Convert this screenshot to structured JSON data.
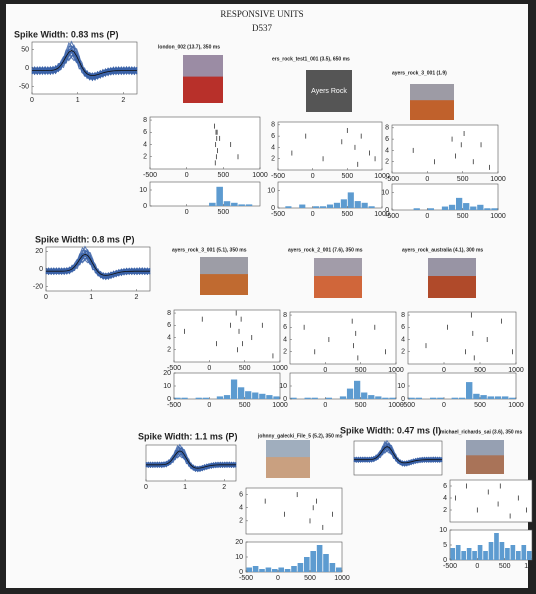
{
  "header": {
    "title": "RESPONSIVE UNITS",
    "subtitle": "D537"
  },
  "units": [
    {
      "spike_width": "Spike Width: 0.83 ms (P)",
      "waveform": {
        "xlim": [
          0,
          2.3
        ],
        "ylim": [
          -70,
          70
        ],
        "xticks": [
          0,
          1,
          2
        ],
        "yticks": [
          50,
          0,
          -50
        ]
      },
      "stimuli": [
        {
          "label": "london_002 (13.7), 350 ms",
          "raster": {
            "xlim": [
              -500,
              1000
            ],
            "ylim": [
              0,
              8.5
            ],
            "xticks": [
              -500,
              0,
              500,
              1000
            ],
            "yticks": [
              2,
              4,
              6,
              8
            ],
            "spike_times": [
              380,
              400,
              410,
              395,
              420,
              405,
              390,
              415,
              600,
              700,
              450
            ],
            "spike_trials": [
              7,
              6,
              5,
              4,
              3,
              2,
              1,
              6,
              4,
              2,
              5
            ]
          },
          "histogram": {
            "bins": [
              -500,
              -400,
              -300,
              -200,
              -100,
              0,
              100,
              200,
              300,
              400,
              500,
              600,
              700,
              800,
              900,
              1000
            ],
            "counts": [
              0,
              0,
              0,
              0,
              0,
              0,
              0,
              0,
              2,
              12,
              3,
              2,
              1,
              1,
              0
            ],
            "ylim": [
              0,
              15
            ],
            "yticks": [
              0,
              10
            ],
            "xticks": [
              0,
              500
            ]
          }
        },
        {
          "label": "ers_rock_test1_001 (3.5), 650 ms",
          "image_text": "Ayers Rock",
          "raster": {
            "xlim": [
              -500,
              1000
            ],
            "ylim": [
              0,
              8.5
            ],
            "xticks": [
              -500,
              0,
              500,
              1000
            ],
            "yticks": [
              2,
              4,
              6,
              8
            ],
            "spike_times": [
              -300,
              -100,
              150,
              420,
              500,
              610,
              650,
              700,
              820,
              900
            ],
            "spike_trials": [
              3,
              6,
              2,
              5,
              7,
              4,
              1,
              6,
              3,
              2
            ]
          },
          "histogram": {
            "bins": [
              -500,
              -400,
              -300,
              -200,
              -100,
              0,
              100,
              200,
              300,
              400,
              500,
              600,
              700,
              800,
              900,
              1000
            ],
            "counts": [
              0,
              1,
              0,
              2,
              0,
              1,
              1,
              2,
              3,
              5,
              9,
              4,
              3,
              1,
              0
            ],
            "ylim": [
              0,
              15
            ],
            "yticks": [
              0,
              10
            ],
            "xticks": [
              -500,
              0,
              500,
              1000
            ]
          }
        },
        {
          "label": "ayers_rock_3_001 (1.9)",
          "raster": {
            "xlim": [
              -500,
              1000
            ],
            "ylim": [
              0,
              8.5
            ],
            "xticks": [
              -500,
              0,
              500,
              1000
            ],
            "yticks": [
              2,
              4,
              6,
              8
            ],
            "spike_times": [
              -200,
              100,
              350,
              400,
              480,
              520,
              650,
              760,
              880
            ],
            "spike_trials": [
              4,
              2,
              6,
              3,
              5,
              7,
              2,
              5,
              1
            ]
          },
          "histogram": {
            "bins": [
              -500,
              -400,
              -300,
              -200,
              -100,
              0,
              100,
              200,
              300,
              400,
              500,
              600,
              700,
              800,
              900,
              1000
            ],
            "counts": [
              0,
              0,
              0,
              1,
              0,
              1,
              0,
              2,
              3,
              7,
              4,
              2,
              3,
              1,
              1
            ],
            "ylim": [
              0,
              15
            ],
            "yticks": [
              0,
              10
            ],
            "xticks": [
              -500,
              0,
              500,
              1000
            ]
          }
        }
      ]
    },
    {
      "spike_width": "Spike Width: 0.8 ms (P)",
      "waveform": {
        "xlim": [
          0,
          2.3
        ],
        "ylim": [
          -25,
          25
        ],
        "xticks": [
          0,
          1,
          2
        ],
        "yticks": [
          20,
          0,
          -20
        ]
      },
      "stimuli": [
        {
          "label": "ayers_rock_3_001 (5.1), 350 ms",
          "raster": {
            "xlim": [
              -500,
              1000
            ],
            "ylim": [
              0,
              8.5
            ],
            "xticks": [
              -500,
              0,
              500,
              1000
            ],
            "yticks": [
              2,
              4,
              6,
              8
            ],
            "spike_times": [
              -350,
              -100,
              100,
              300,
              380,
              400,
              420,
              450,
              470,
              600,
              750,
              900
            ],
            "spike_trials": [
              5,
              7,
              3,
              6,
              8,
              2,
              5,
              7,
              3,
              4,
              6,
              1
            ]
          },
          "histogram": {
            "bins": [
              -500,
              -400,
              -300,
              -200,
              -100,
              0,
              100,
              200,
              300,
              400,
              500,
              600,
              700,
              800,
              900,
              1000
            ],
            "counts": [
              1,
              1,
              0,
              1,
              1,
              0,
              2,
              3,
              15,
              9,
              6,
              5,
              4,
              3,
              2
            ],
            "ylim": [
              0,
              20
            ],
            "yticks": [
              0,
              10,
              20
            ],
            "xticks": [
              -500,
              0,
              500,
              1000
            ]
          }
        },
        {
          "label": "ayers_rock_2_001 (7.6), 350 ms",
          "raster": {
            "xlim": [
              -500,
              1000
            ],
            "ylim": [
              0,
              8.5
            ],
            "xticks": [
              0,
              500,
              1000
            ],
            "yticks": [
              2,
              4,
              6,
              8
            ],
            "spike_times": [
              -300,
              -150,
              50,
              380,
              400,
              430,
              460,
              700,
              850
            ],
            "spike_trials": [
              6,
              2,
              4,
              7,
              3,
              5,
              1,
              6,
              2
            ]
          },
          "histogram": {
            "bins": [
              -500,
              -400,
              -300,
              -200,
              -100,
              0,
              100,
              200,
              300,
              400,
              500,
              600,
              700,
              800,
              900,
              1000
            ],
            "counts": [
              1,
              0,
              1,
              1,
              0,
              1,
              0,
              2,
              8,
              14,
              5,
              3,
              2,
              1,
              1
            ],
            "ylim": [
              0,
              20
            ],
            "yticks": [
              0,
              10
            ],
            "xticks": [
              0,
              500,
              1000
            ]
          }
        },
        {
          "label": "ayers_rock_australia (4.1), 300 ms",
          "raster": {
            "xlim": [
              -500,
              1000
            ],
            "ylim": [
              0,
              8.5
            ],
            "xticks": [
              0,
              500,
              1000
            ],
            "yticks": [
              2,
              4,
              6,
              8
            ],
            "spike_times": [
              -250,
              50,
              300,
              380,
              400,
              420,
              600,
              800,
              950
            ],
            "spike_trials": [
              3,
              6,
              2,
              8,
              5,
              1,
              4,
              7,
              2
            ]
          },
          "histogram": {
            "bins": [
              -500,
              -400,
              -300,
              -200,
              -100,
              0,
              100,
              200,
              300,
              400,
              500,
              600,
              700,
              800,
              900,
              1000
            ],
            "counts": [
              1,
              1,
              0,
              1,
              1,
              0,
              1,
              1,
              13,
              4,
              3,
              2,
              2,
              2,
              1
            ],
            "ylim": [
              0,
              20
            ],
            "yticks": [
              0,
              10
            ],
            "xticks": [
              -500,
              0,
              500,
              1000
            ]
          }
        }
      ]
    },
    {
      "spike_width": "Spike Width: 1.1 ms (P)",
      "waveform": {
        "xlim": [
          0,
          2.3
        ],
        "ylim": [
          -25,
          25
        ],
        "xticks": [
          0,
          1,
          2
        ]
      },
      "stimuli": [
        {
          "label": "johnny_galecki_File_5 (5.2), 350 ms",
          "raster": {
            "xlim": [
              -500,
              1000
            ],
            "ylim": [
              0,
              7
            ],
            "xticks": [],
            "yticks": [
              2,
              4,
              6
            ],
            "spike_times": [
              -200,
              100,
              300,
              500,
              550,
              600,
              700,
              850
            ],
            "spike_trials": [
              5,
              3,
              6,
              2,
              4,
              5,
              1,
              3
            ]
          },
          "histogram": {
            "bins": [
              -500,
              -400,
              -300,
              -200,
              -100,
              0,
              100,
              200,
              300,
              400,
              500,
              600,
              700,
              800,
              900,
              1000
            ],
            "counts": [
              3,
              4,
              2,
              3,
              2,
              3,
              2,
              4,
              6,
              10,
              14,
              18,
              12,
              6,
              3
            ],
            "ylim": [
              0,
              20
            ],
            "yticks": [
              0,
              10,
              20
            ],
            "xticks": [
              -500,
              0,
              500,
              1000
            ]
          }
        }
      ]
    },
    {
      "spike_width": "Spike Width: 0.47 ms (I)",
      "waveform": {
        "xlim": [
          0,
          2.3
        ],
        "ylim": [
          -25,
          25
        ]
      },
      "stimuli": [
        {
          "label": "michael_richards_sai (3.6), 350 ms",
          "raster": {
            "xlim": [
              -500,
              1000
            ],
            "ylim": [
              0,
              7
            ],
            "xticks": [],
            "yticks": [
              2,
              4,
              6
            ],
            "spike_times": [
              -400,
              -200,
              0,
              200,
              380,
              420,
              600,
              750,
              900
            ],
            "spike_trials": [
              4,
              6,
              2,
              5,
              3,
              6,
              1,
              4,
              2
            ]
          },
          "histogram": {
            "bins": [
              -500,
              -400,
              -300,
              -200,
              -100,
              0,
              100,
              200,
              300,
              400,
              500,
              600,
              700,
              800,
              900,
              1000
            ],
            "counts": [
              4,
              5,
              3,
              4,
              3,
              5,
              3,
              6,
              9,
              6,
              4,
              5,
              3,
              5,
              3
            ],
            "ylim": [
              0,
              10
            ],
            "yticks": [
              0,
              5,
              10
            ],
            "xticks": [
              -500,
              0,
              500,
              1000
            ]
          }
        }
      ]
    }
  ]
}
